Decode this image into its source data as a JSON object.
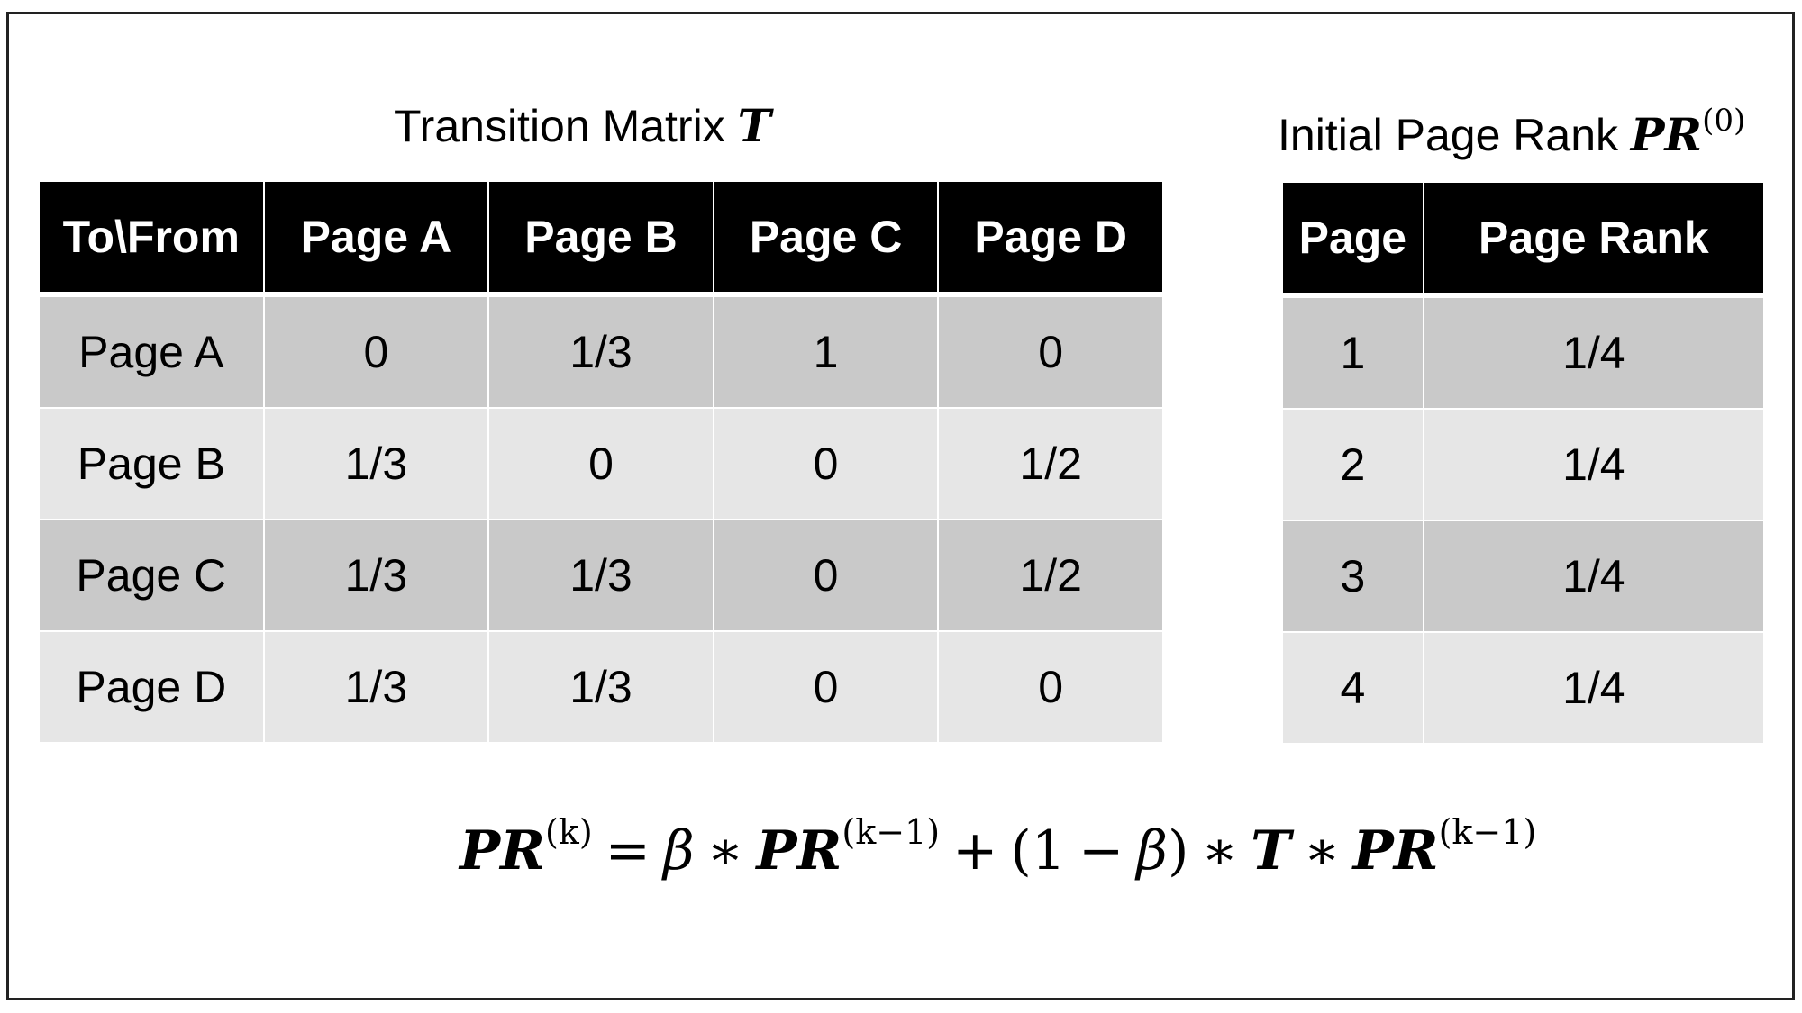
{
  "transition_title": {
    "text": "Transition Matrix ",
    "symbol": "T"
  },
  "rank_title": {
    "text": "Initial Page Rank ",
    "symbol": "PR",
    "superscript": "(0)"
  },
  "transition_table": {
    "headers": [
      "To\\From",
      "Page A",
      "Page B",
      "Page C",
      "Page D"
    ],
    "rows": [
      [
        "Page A",
        "0",
        "1/3",
        "1",
        "0"
      ],
      [
        "Page B",
        "1/3",
        "0",
        "0",
        "1/2"
      ],
      [
        "Page C",
        "1/3",
        "1/3",
        "0",
        "1/2"
      ],
      [
        "Page D",
        "1/3",
        "1/3",
        "0",
        "0"
      ]
    ]
  },
  "rank_table": {
    "headers": [
      "Page",
      "Page Rank"
    ],
    "rows": [
      [
        "1",
        "1/4"
      ],
      [
        "2",
        "1/4"
      ],
      [
        "3",
        "1/4"
      ],
      [
        "4",
        "1/4"
      ]
    ]
  },
  "formula": {
    "pr": "PR",
    "sup_k": "(k)",
    "eq": "=",
    "beta": "β",
    "star": "∗",
    "sup_k1": "(k−1)",
    "plus": "+",
    "paren_open": "(1",
    "minus": "−",
    "paren_close": ")",
    "t": "T"
  },
  "colors": {
    "header_bg": "#000000",
    "header_text": "#ffffff",
    "row_dark": "#c9c9c9",
    "row_light": "#e6e6e6"
  }
}
